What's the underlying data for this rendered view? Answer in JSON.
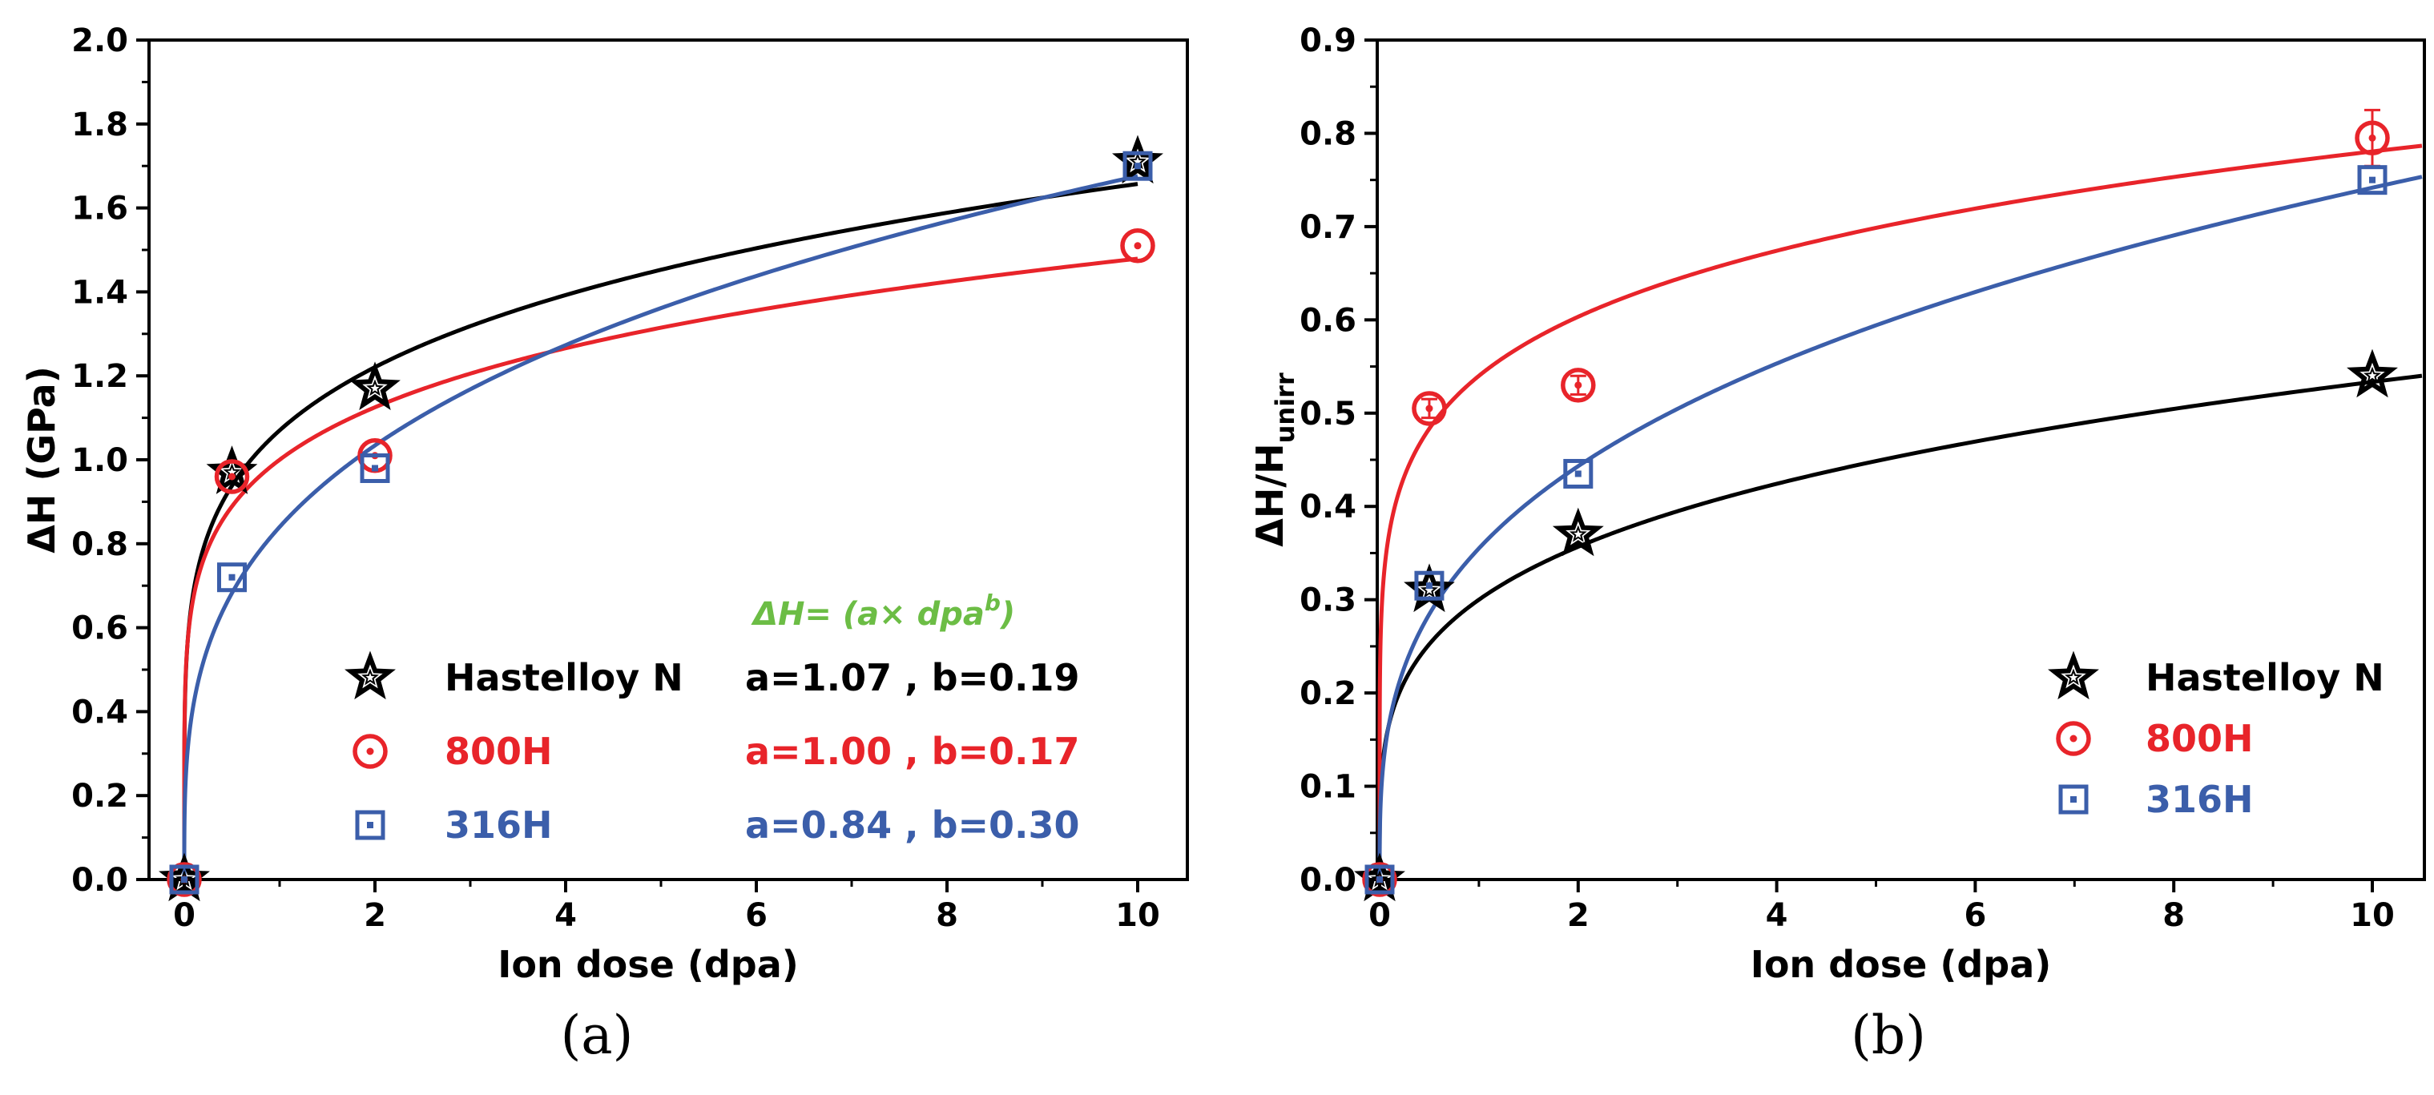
{
  "colors": {
    "hastelloy": "#000000",
    "h800": "#e8242a",
    "h316": "#3b5eaa",
    "equation": "#6cbd45"
  },
  "chart_data": [
    {
      "type": "scatter",
      "panel_label": "(a)",
      "xlabel": "Ion dose (dpa)",
      "ylabel_main": "ΔH",
      "ylabel_rest": " (GPa)",
      "xlim": [
        -0.5,
        10.5
      ],
      "ylim": [
        0,
        2.0
      ],
      "xticks": [
        0,
        2,
        4,
        6,
        8,
        10
      ],
      "xticklabels": [
        "0",
        "2",
        "4",
        "6",
        "8",
        "10"
      ],
      "yticks": [
        0.0,
        0.2,
        0.4,
        0.6,
        0.8,
        1.0,
        1.2,
        1.4,
        1.6,
        1.8,
        2.0
      ],
      "yticklabels": [
        "0.0",
        "0.2",
        "0.4",
        "0.6",
        "0.8",
        "1.0",
        "1.2",
        "1.4",
        "1.6",
        "1.8",
        "2.0"
      ],
      "fit_x_max": 10,
      "equation": {
        "prefix": "ΔH= (a× dpa",
        "sup": "b",
        "suffix": ")"
      },
      "series": [
        {
          "name": "Hastelloy N",
          "marker": "star",
          "color": "#000000",
          "x": [
            0,
            0.5,
            2,
            10
          ],
          "y": [
            0,
            0.97,
            1.17,
            1.71
          ],
          "fit": {
            "a": 1.07,
            "b": 0.19
          },
          "fit_label": "a=1.07 , b=0.19"
        },
        {
          "name": "800H",
          "marker": "circle",
          "color": "#e8242a",
          "x": [
            0,
            0.5,
            2,
            10
          ],
          "y": [
            0,
            0.96,
            1.01,
            1.51
          ],
          "fit": {
            "a": 1.0,
            "b": 0.17
          },
          "fit_label": "a=1.00 , b=0.17"
        },
        {
          "name": "316H",
          "marker": "square",
          "color": "#3b5eaa",
          "x": [
            0,
            0.5,
            2,
            10
          ],
          "y": [
            0,
            0.72,
            0.98,
            1.7
          ],
          "fit": {
            "a": 0.84,
            "b": 0.3
          },
          "fit_label": "a=0.84 , b=0.30"
        }
      ]
    },
    {
      "type": "scatter",
      "panel_label": "(b)",
      "xlabel": "Ion dose (dpa)",
      "ylabel_main": "ΔH/H",
      "ylabel_sub": "unirr",
      "xlim": [
        0,
        10.5
      ],
      "ylim": [
        0,
        0.9
      ],
      "xticks": [
        0,
        2,
        4,
        6,
        8,
        10
      ],
      "xticklabels": [
        "0",
        "2",
        "4",
        "6",
        "8",
        "10"
      ],
      "yticks": [
        0.0,
        0.1,
        0.2,
        0.3,
        0.4,
        0.5,
        0.6,
        0.7,
        0.8,
        0.9
      ],
      "yticklabels": [
        "0.0",
        "0.1",
        "0.2",
        "0.3",
        "0.4",
        "0.5",
        "0.6",
        "0.7",
        "0.8",
        "0.9"
      ],
      "fit_x_max": 10.5,
      "series": [
        {
          "name": "Hastelloy N",
          "marker": "star",
          "color": "#000000",
          "x": [
            0,
            0.5,
            2,
            10
          ],
          "y": [
            0,
            0.31,
            0.37,
            0.54
          ],
          "fit": {
            "a": 0.3,
            "b": 0.25
          }
        },
        {
          "name": "800H",
          "marker": "circle",
          "color": "#e8242a",
          "x": [
            0,
            0.5,
            2,
            10
          ],
          "y": [
            0,
            0.505,
            0.53,
            0.795
          ],
          "yerr": [
            0,
            0.01,
            0.01,
            0.03
          ],
          "fit": {
            "a": 0.54,
            "b": 0.16
          }
        },
        {
          "name": "316H",
          "marker": "square",
          "color": "#3b5eaa",
          "x": [
            0,
            0.5,
            2,
            10
          ],
          "y": [
            0,
            0.315,
            0.435,
            0.75
          ],
          "fit": {
            "a": 0.355,
            "b": 0.32
          }
        }
      ]
    }
  ]
}
